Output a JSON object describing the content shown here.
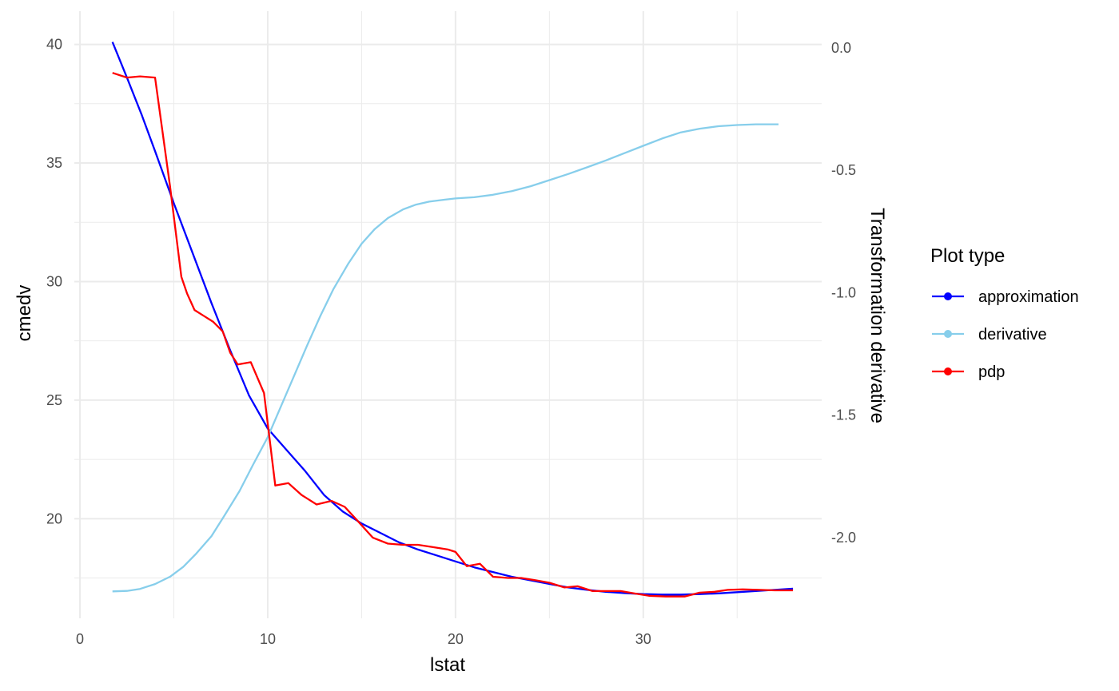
{
  "chart_data": {
    "type": "line",
    "title": "",
    "xlabel": "lstat",
    "ylabel": "cmedv",
    "y2label": "Transformation derivative",
    "xlim": [
      -0.3,
      39.5
    ],
    "ylim": [
      15.8,
      41.4
    ],
    "y2lim": [
      -2.33,
      0.15
    ],
    "xticks": [
      0,
      10,
      20,
      30
    ],
    "xtick_labels": [
      "0",
      "10",
      "20",
      "30"
    ],
    "yticks": [
      20,
      25,
      30,
      35,
      40
    ],
    "ytick_labels": [
      "20",
      "25",
      "30",
      "35",
      "40"
    ],
    "y2ticks": [
      0.0,
      -0.5,
      -1.0,
      -1.5,
      -2.0
    ],
    "y2tick_labels": [
      "0.0",
      "-0.5",
      "-1.0",
      "-1.5",
      "-2.0"
    ],
    "grid": true,
    "legend": {
      "title": "Plot type",
      "position": "right",
      "entries": [
        "approximation",
        "derivative",
        "pdp"
      ]
    },
    "series": [
      {
        "name": "approximation",
        "color": "#0000ff",
        "axis": "left",
        "x": [
          1.73,
          2.5,
          3.3,
          4.0,
          5.0,
          6.0,
          7.0,
          8.0,
          9.0,
          10.0,
          11.0,
          12.0,
          13.0,
          14.0,
          15.0,
          16.0,
          17.0,
          18.0,
          19.0,
          20.0,
          21.0,
          22.0,
          23.0,
          24.0,
          25.0,
          26.0,
          27.0,
          28.0,
          29.0,
          30.0,
          31.0,
          32.0,
          33.0,
          34.0,
          35.0,
          36.0,
          37.97
        ],
        "y": [
          40.1,
          38.6,
          37.0,
          35.5,
          33.3,
          31.2,
          29.1,
          27.1,
          25.2,
          23.8,
          22.9,
          22.0,
          21.0,
          20.3,
          19.8,
          19.4,
          19.0,
          18.7,
          18.45,
          18.2,
          17.95,
          17.75,
          17.55,
          17.4,
          17.25,
          17.1,
          17.0,
          16.92,
          16.86,
          16.82,
          16.8,
          16.8,
          16.82,
          16.85,
          16.9,
          16.95,
          17.05
        ]
      },
      {
        "name": "derivative",
        "color": "#87ceeb",
        "axis": "right",
        "x": [
          1.73,
          2.5,
          3.2,
          4.0,
          4.8,
          5.5,
          6.2,
          7.0,
          7.7,
          8.5,
          9.2,
          10.0,
          10.7,
          11.4,
          12.1,
          12.8,
          13.5,
          14.3,
          15.0,
          15.7,
          16.4,
          17.2,
          17.9,
          18.6,
          19.4,
          20.0,
          21.0,
          22.0,
          23.0,
          24.0,
          25.0,
          26.0,
          27.0,
          28.0,
          29.0,
          30.0,
          31.0,
          32.0,
          33.0,
          34.0,
          35.0,
          36.0,
          37.2
        ],
        "y": [
          -2.22,
          -2.218,
          -2.21,
          -2.19,
          -2.16,
          -2.12,
          -2.065,
          -1.995,
          -1.91,
          -1.81,
          -1.705,
          -1.59,
          -1.465,
          -1.34,
          -1.215,
          -1.095,
          -0.985,
          -0.88,
          -0.8,
          -0.74,
          -0.695,
          -0.66,
          -0.64,
          -0.628,
          -0.62,
          -0.615,
          -0.61,
          -0.6,
          -0.585,
          -0.565,
          -0.54,
          -0.515,
          -0.488,
          -0.46,
          -0.43,
          -0.4,
          -0.37,
          -0.345,
          -0.33,
          -0.32,
          -0.315,
          -0.312,
          -0.312
        ]
      },
      {
        "name": "pdp",
        "color": "#ff0000",
        "axis": "left",
        "x": [
          1.73,
          2.5,
          3.2,
          4.0,
          4.8,
          5.4,
          5.7,
          6.1,
          7.1,
          7.6,
          8.0,
          8.4,
          9.1,
          9.8,
          10.4,
          11.1,
          11.8,
          12.6,
          13.4,
          14.1,
          14.8,
          15.6,
          16.4,
          17.2,
          18.0,
          18.8,
          19.6,
          20.0,
          20.6,
          21.3,
          22.0,
          22.8,
          23.5,
          24.3,
          25.0,
          25.8,
          26.5,
          27.3,
          28.0,
          28.8,
          29.5,
          30.3,
          31.2,
          32.2,
          33.0,
          33.8,
          34.5,
          35.3,
          36.2,
          37.0,
          37.97
        ],
        "y": [
          38.8,
          38.6,
          38.65,
          38.6,
          34.0,
          30.2,
          29.5,
          28.8,
          28.3,
          27.9,
          27.0,
          26.5,
          26.6,
          25.3,
          21.4,
          21.5,
          21.0,
          20.6,
          20.75,
          20.5,
          19.9,
          19.2,
          18.95,
          18.9,
          18.9,
          18.8,
          18.7,
          18.6,
          18.0,
          18.1,
          17.55,
          17.5,
          17.5,
          17.4,
          17.3,
          17.1,
          17.15,
          16.95,
          16.95,
          16.95,
          16.85,
          16.75,
          16.72,
          16.72,
          16.88,
          16.92,
          17.0,
          17.02,
          17.0,
          16.98,
          16.98
        ]
      }
    ]
  }
}
